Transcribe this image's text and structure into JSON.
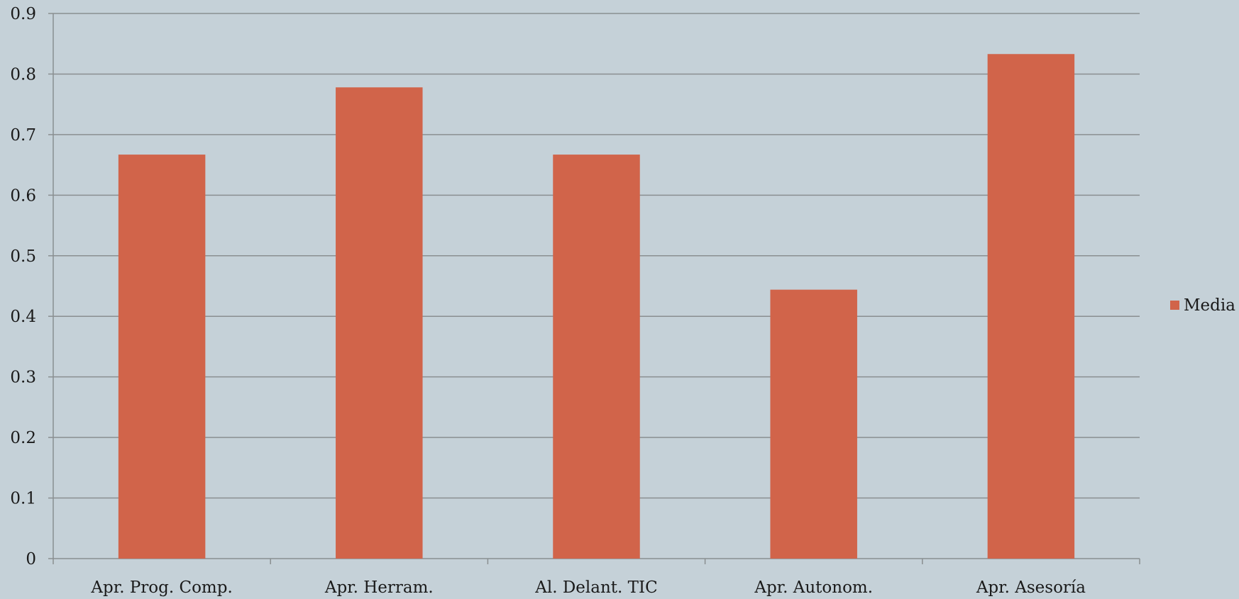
{
  "chart_data": {
    "type": "bar",
    "categories": [
      "Apr. Prog. Comp.",
      "Apr. Herram.",
      "Al. Delant. TIC",
      "Apr. Autonom.",
      "Apr. Asesoría"
    ],
    "series": [
      {
        "name": "Media",
        "values": [
          0.667,
          0.778,
          0.667,
          0.444,
          0.833
        ]
      }
    ],
    "ylim": [
      0,
      0.9
    ],
    "yticks": [
      "0",
      "0.1",
      "0.2",
      "0.3",
      "0.4",
      "0.5",
      "0.6",
      "0.7",
      "0.8",
      "0.9"
    ],
    "grid": true,
    "legend_position": "right",
    "colors": {
      "background": "#c5d1d8",
      "bar": "#d1644a",
      "grid": "#8a8f91",
      "axis": "#8a8f91"
    }
  }
}
